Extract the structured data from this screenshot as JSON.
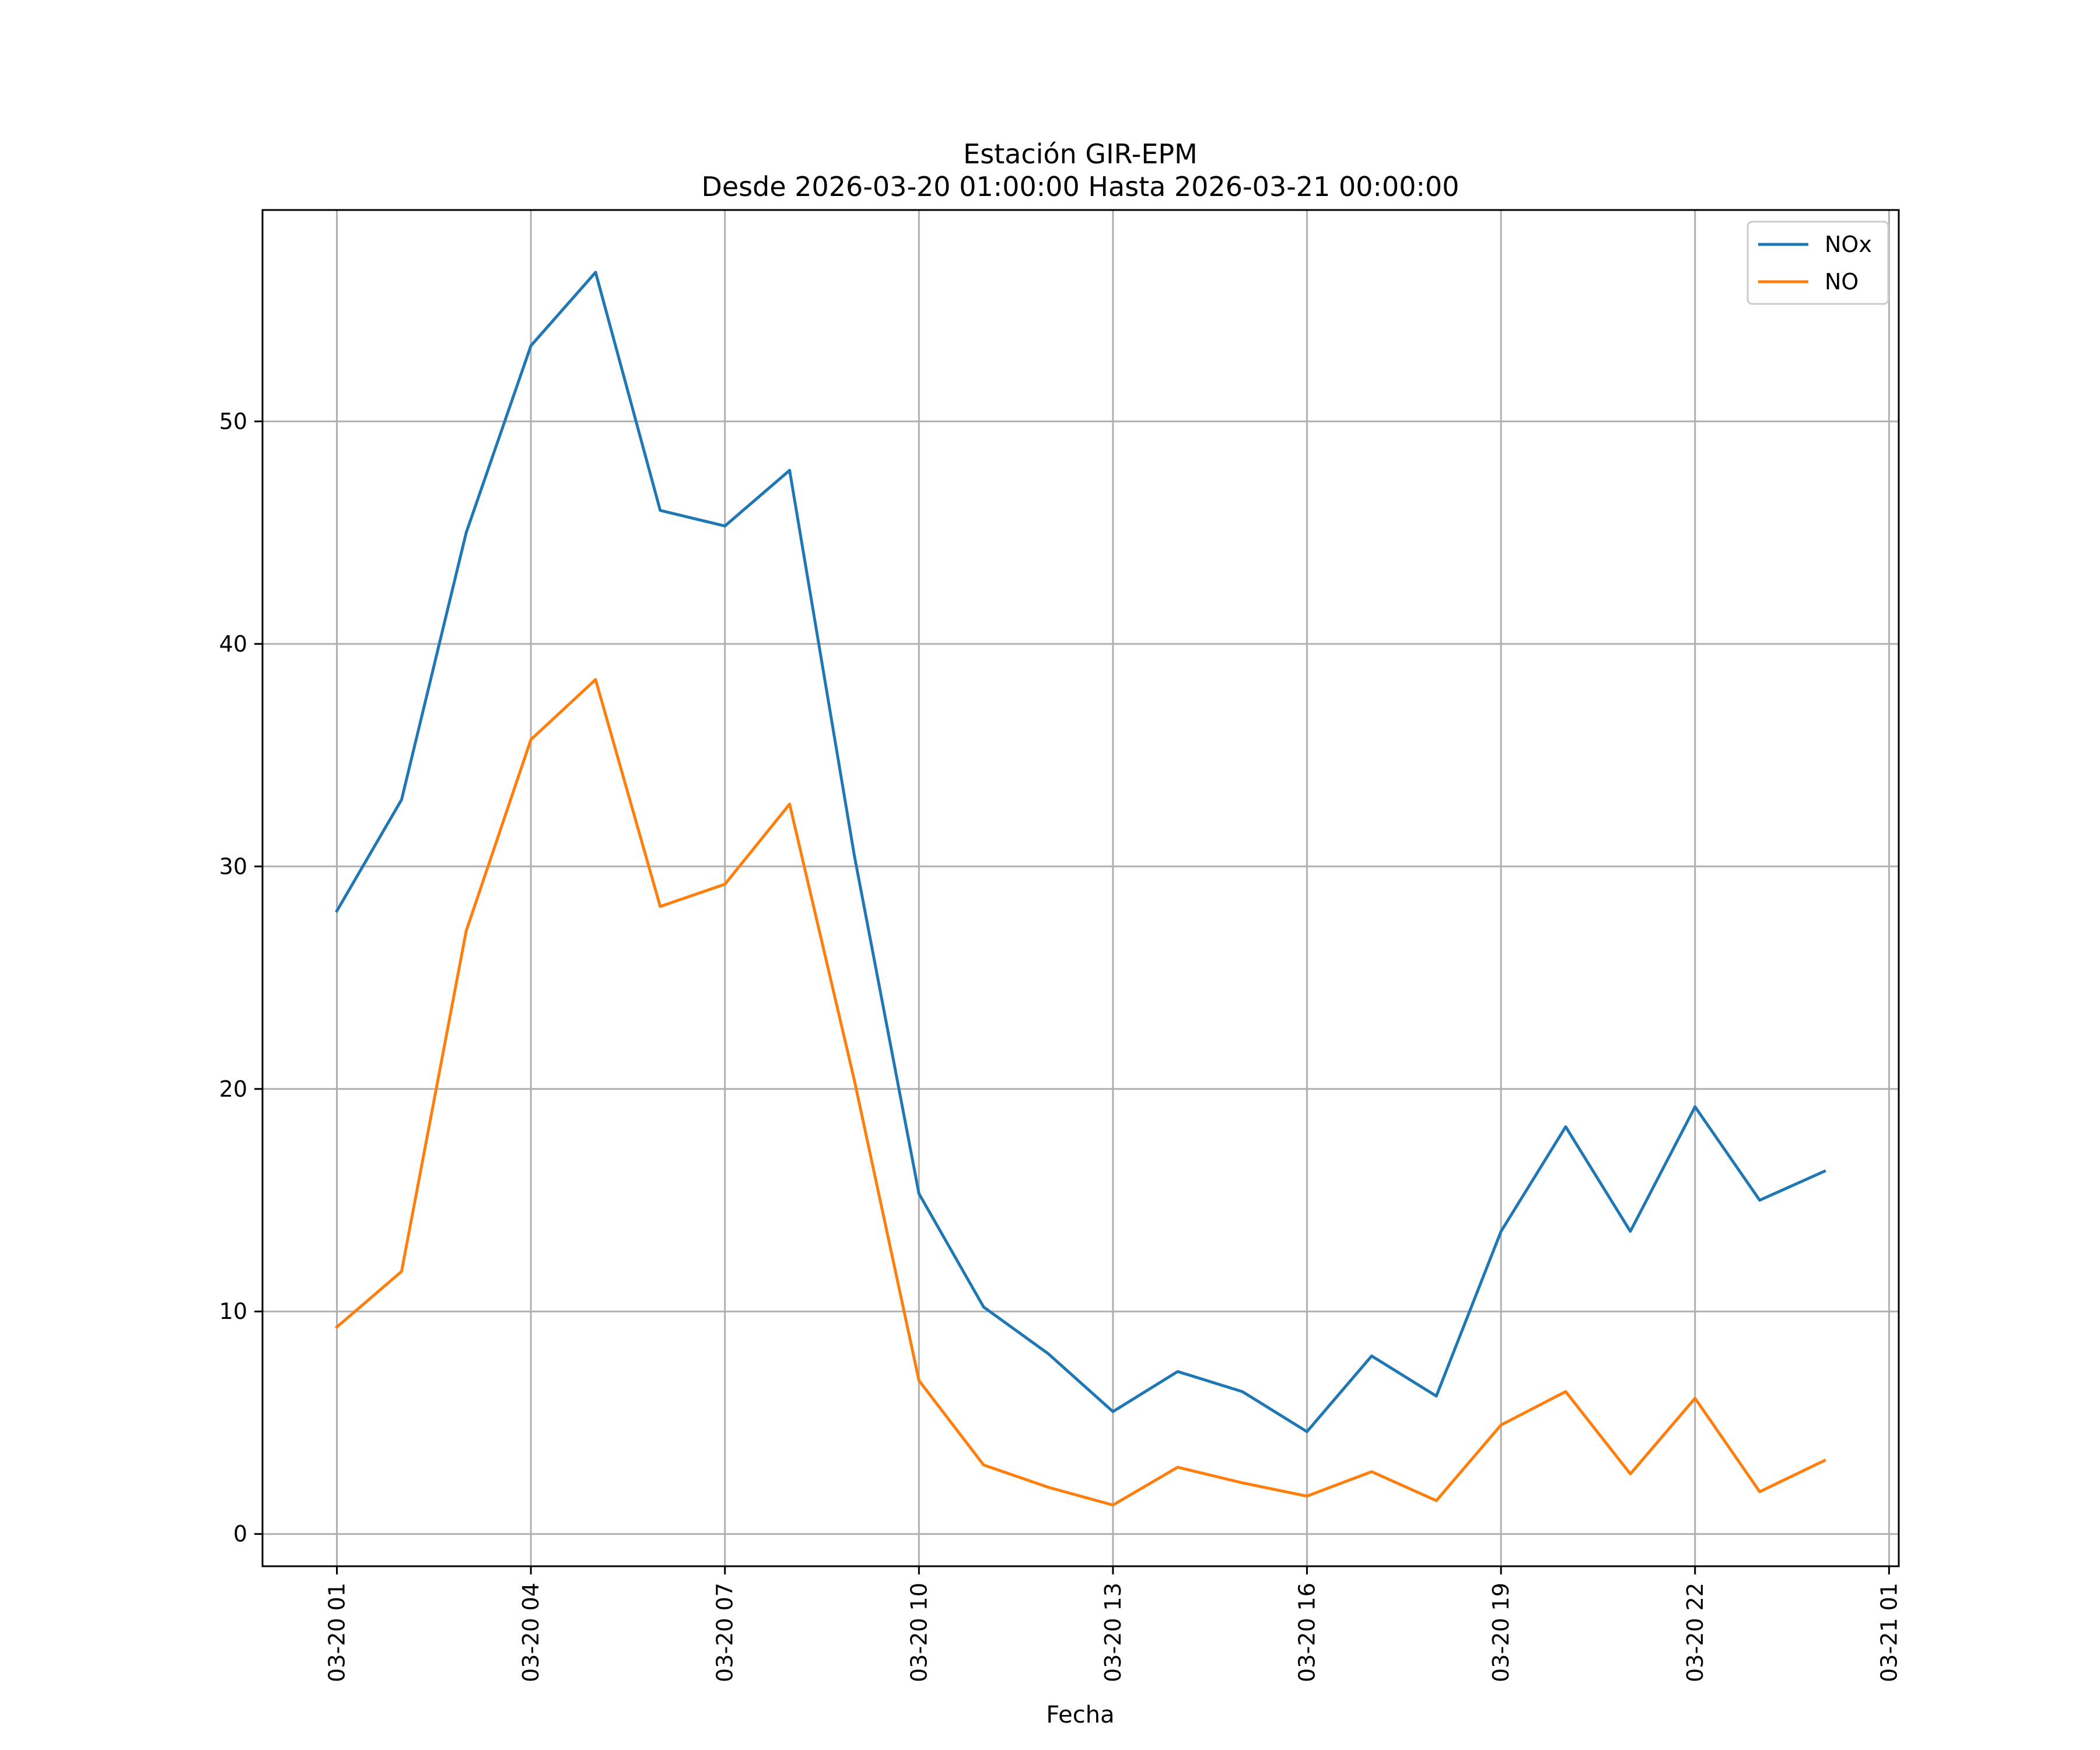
{
  "chart_data": {
    "type": "line",
    "title": "Estación GIR-EPM",
    "subtitle": "Desde 2026-03-20 01:00:00 Hasta 2026-03-21 00:00:00",
    "xlabel": "Fecha",
    "ylabel": "",
    "x": [
      "2026-03-20 01:00",
      "2026-03-20 02:00",
      "2026-03-20 03:00",
      "2026-03-20 04:00",
      "2026-03-20 05:00",
      "2026-03-20 06:00",
      "2026-03-20 07:00",
      "2026-03-20 08:00",
      "2026-03-20 09:00",
      "2026-03-20 10:00",
      "2026-03-20 11:00",
      "2026-03-20 12:00",
      "2026-03-20 13:00",
      "2026-03-20 14:00",
      "2026-03-20 15:00",
      "2026-03-20 16:00",
      "2026-03-20 17:00",
      "2026-03-20 18:00",
      "2026-03-20 19:00",
      "2026-03-20 20:00",
      "2026-03-20 21:00",
      "2026-03-20 22:00",
      "2026-03-20 23:00",
      "2026-03-21 00:00"
    ],
    "series": [
      {
        "name": "NOx",
        "color": "#1f77b4",
        "values": [
          28.0,
          33.0,
          45.0,
          53.4,
          56.7,
          46.0,
          45.3,
          47.8,
          30.5,
          15.3,
          10.2,
          8.1,
          5.5,
          7.3,
          6.4,
          4.6,
          8.0,
          6.2,
          13.6,
          18.3,
          13.6,
          19.2,
          15.0,
          16.3
        ]
      },
      {
        "name": "NO",
        "color": "#ff7f0e",
        "values": [
          9.3,
          11.8,
          27.1,
          35.7,
          38.4,
          28.2,
          29.2,
          32.8,
          20.4,
          6.9,
          3.1,
          2.1,
          1.3,
          3.0,
          2.3,
          1.7,
          2.8,
          1.5,
          4.9,
          6.4,
          2.7,
          6.1,
          1.9,
          3.3
        ]
      }
    ],
    "x_ticks": [
      "2026-03-20 01:00",
      "2026-03-20 04:00",
      "2026-03-20 07:00",
      "2026-03-20 10:00",
      "2026-03-20 13:00",
      "2026-03-20 16:00",
      "2026-03-20 19:00",
      "2026-03-20 22:00",
      "2026-03-21 01:00"
    ],
    "x_tick_labels": [
      "03-20 01",
      "03-20 04",
      "03-20 07",
      "03-20 10",
      "03-20 13",
      "03-20 16",
      "03-20 19",
      "03-20 22",
      "03-21 01"
    ],
    "xlim": [
      "2026-03-19 23:51",
      "2026-03-21 01:09"
    ],
    "y_ticks": [
      0,
      10,
      20,
      30,
      40,
      50
    ],
    "y_tick_labels": [
      "0",
      "10",
      "20",
      "30",
      "40",
      "50"
    ],
    "ylim": [
      -1.45,
      59.5
    ],
    "grid": true,
    "legend": "top-right"
  }
}
